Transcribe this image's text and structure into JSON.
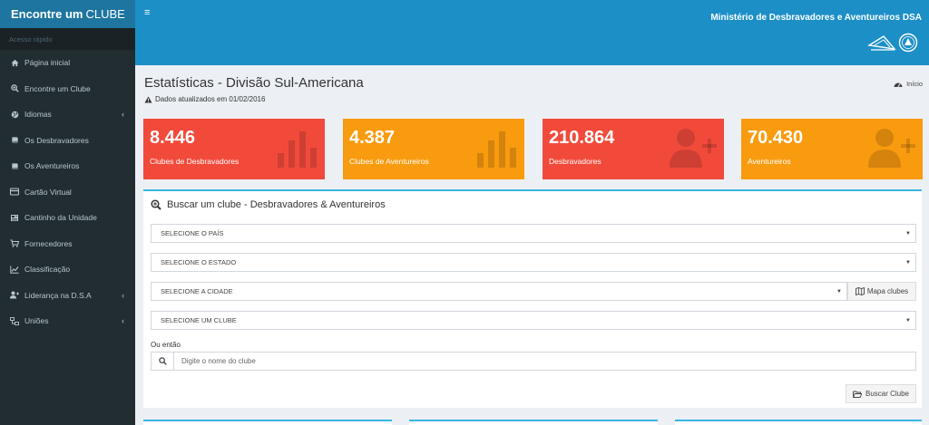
{
  "brand": {
    "part1": "Encontre um ",
    "part2": "CLUBE"
  },
  "sidebar": {
    "header": "Acesso rápido",
    "items": [
      {
        "label": "Página inicial",
        "icon": "home-icon",
        "has_chevron": false
      },
      {
        "label": "Encontre um Clube",
        "icon": "search-plus-icon",
        "has_chevron": false
      },
      {
        "label": "Idiomas",
        "icon": "globe-icon",
        "has_chevron": true
      },
      {
        "label": "Os Desbravadores",
        "icon": "book-icon",
        "has_chevron": false
      },
      {
        "label": "Os Aventureiros",
        "icon": "book-icon",
        "has_chevron": false
      },
      {
        "label": "Cartão Virtual",
        "icon": "card-icon",
        "has_chevron": false
      },
      {
        "label": "Cantinho da Unidade",
        "icon": "newspaper-icon",
        "has_chevron": false
      },
      {
        "label": "Fornecedores",
        "icon": "cart-icon",
        "has_chevron": false
      },
      {
        "label": "Classificação",
        "icon": "line-chart-icon",
        "has_chevron": false
      },
      {
        "label": "Liderança na D.S.A",
        "icon": "user-plus-icon",
        "has_chevron": true
      },
      {
        "label": "Uniões",
        "icon": "sitemap-icon",
        "has_chevron": true
      }
    ]
  },
  "header": {
    "menu_icon": "≡",
    "ministry": "Ministério de Desbravadores e Aventureiros DSA"
  },
  "page": {
    "title": "Estatísticas - Divisão Sul-Americana",
    "update_note": "Dados atualizados em 01/02/2016",
    "breadcrumb": "Início"
  },
  "stats": [
    {
      "value": "8.446",
      "label": "Clubes de Desbravadores",
      "color": "#f14a3b",
      "icon": "bar-chart-icon"
    },
    {
      "value": "4.387",
      "label": "Clubes de Aventureiros",
      "color": "#f99b0f",
      "icon": "bar-chart-icon"
    },
    {
      "value": "210.864",
      "label": "Desbravadores",
      "color": "#f14a3b",
      "icon": "user-plus-icon"
    },
    {
      "value": "70.430",
      "label": "Aventureiros",
      "color": "#f99b0f",
      "icon": "user-plus-icon"
    }
  ],
  "search": {
    "title": "Buscar um clube - Desbravadores & Aventureiros",
    "country_select": "SELECIONE O PAÍS",
    "state_select": "SELECIONE O ESTADO",
    "city_select": "SELECIONE A CIDADE",
    "map_button": "Mapa clubes",
    "club_select": "SELECIONE UM CLUBE",
    "or_label": "Ou então",
    "name_placeholder": "Digite o nome do clube",
    "submit_button": "Buscar Clube"
  },
  "colors": {
    "navbar": "#1c8fc7",
    "sidebar": "#222d32",
    "accent": "#3bb6e0"
  }
}
